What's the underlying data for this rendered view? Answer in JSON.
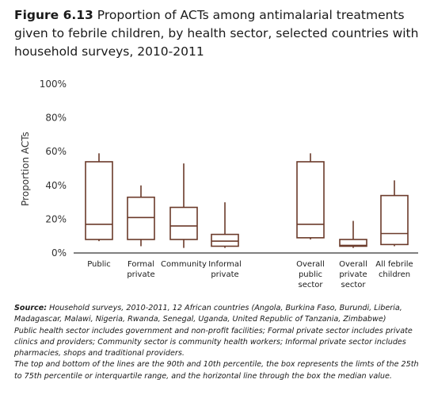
{
  "title": {
    "figure_label": "Figure 6.13",
    "text": "Proportion of ACTs among antimalarial treatments given to febrile children, by health sector, selected countries with household surveys, 2010-2011"
  },
  "chart_data": {
    "type": "boxplot",
    "ylabel": "Proportion ACTs",
    "ylim": [
      0,
      100
    ],
    "yticks": [
      "0%",
      "20%",
      "40%",
      "60%",
      "80%",
      "100%"
    ],
    "grid": false,
    "color": "#6b3a2a",
    "categories": [
      {
        "label": [
          "Public"
        ],
        "p10": 7,
        "q1": 8,
        "median": 17,
        "q3": 54,
        "p90": 59
      },
      {
        "label": [
          "Formal",
          "private"
        ],
        "p10": 4,
        "q1": 8,
        "median": 21,
        "q3": 33,
        "p90": 40
      },
      {
        "label": [
          "Community"
        ],
        "p10": 3,
        "q1": 8,
        "median": 16,
        "q3": 27,
        "p90": 53
      },
      {
        "label": [
          "Informal",
          "private"
        ],
        "p10": 3,
        "q1": 4,
        "median": 7,
        "q3": 11,
        "p90": 30
      },
      {
        "label": [
          "Overall",
          "public",
          "sector"
        ],
        "p10": 8,
        "q1": 9,
        "median": 17,
        "q3": 54,
        "p90": 59
      },
      {
        "label": [
          "Overall",
          "private",
          "sector"
        ],
        "p10": 3,
        "q1": 4,
        "median": 4.5,
        "q3": 8,
        "p90": 19
      },
      {
        "label": [
          "All febrile",
          "children"
        ],
        "p10": 4,
        "q1": 5,
        "median": 11.5,
        "q3": 34,
        "p90": 43
      }
    ]
  },
  "notes": {
    "source_label": "Source:",
    "source_text": "Household surveys, 2010-2011, 12 African countries (Angola, Burkina Faso, Burundi, Liberia, Madagascar, Malawi, Nigeria, Rwanda, Senegal, Uganda, United Republic of Tanzania, Zimbabwe)",
    "definitions": "Public health sector includes government and non-profit facilities; Formal private sector includes private clinics and providers; Community sector is community health workers; Informal private sector includes pharmacies, shops and traditional providers.",
    "explanation": "The top and bottom of the lines are the 90th and 10th percentile, the box represents the limts of the 25th to 75th percentile or interquartile range, and the horizontal line through the box the median value."
  }
}
